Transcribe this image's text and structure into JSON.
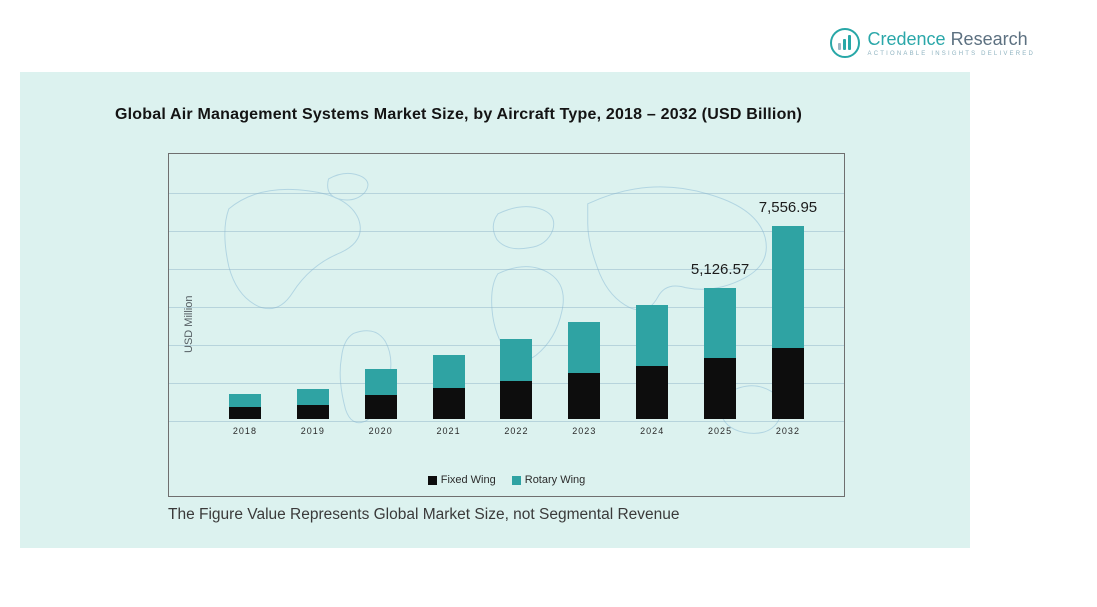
{
  "logo": {
    "brand_primary": "Credence",
    "brand_secondary": "Research",
    "tagline": "Actionable Insights Delivered",
    "icon": "bar-chart-circle-icon",
    "colors": {
      "primary": "#2aa7a9",
      "secondary": "#5c7080"
    }
  },
  "panel": {
    "background": "#dcf2ef"
  },
  "chart": {
    "title": "Global Air Management Systems Market Size, by Aircraft Type, 2018 – 2032 (USD Billion)",
    "y_axis_label": "USD Million",
    "footnote": "The Figure Value Represents Global Market Size, not Segmental Revenue"
  },
  "chart_data": {
    "type": "bar",
    "stacked": true,
    "title": "Global Air Management Systems Market Size, by Aircraft Type, 2018 – 2032 (USD Billion)",
    "xlabel": "",
    "ylabel": "USD Million",
    "categories": [
      "2018",
      "2019",
      "2020",
      "2021",
      "2022",
      "2023",
      "2024",
      "2025",
      "2032"
    ],
    "series": [
      {
        "name": "Fixed Wing",
        "color": "#0d0d0d",
        "values": [
          475,
          535,
          925,
          1220,
          1490,
          1820,
          2085,
          2385,
          2770
        ]
      },
      {
        "name": "Rotary Wing",
        "color": "#2fa3a3",
        "values": [
          510,
          625,
          1040,
          1285,
          1640,
          1995,
          2385,
          2741.57,
          4786.95
        ]
      }
    ],
    "totals": [
      985,
      1160,
      1965,
      2505,
      3130,
      3815,
      4470,
      5126.57,
      7556.95
    ],
    "annotations": [
      {
        "category": "2025",
        "text": "5,126.57"
      },
      {
        "category": "2032",
        "text": "7,556.95"
      }
    ],
    "ylim": [
      0,
      8000
    ],
    "grid": true,
    "legend_position": "bottom"
  }
}
